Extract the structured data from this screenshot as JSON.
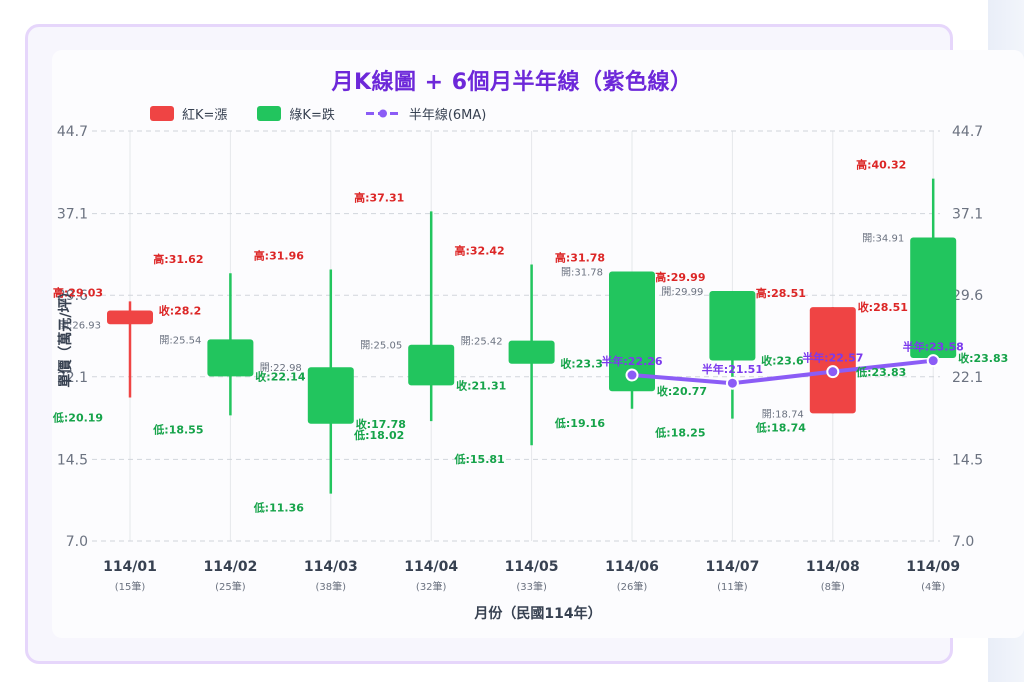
{
  "title": "月K線圖 + 6個月半年線（紫色線）",
  "legend": {
    "items": [
      {
        "label": "紅K=漲",
        "color": "#ef4444",
        "kind": "box"
      },
      {
        "label": "綠K=跌",
        "color": "#22c55e",
        "kind": "box"
      },
      {
        "label": "半年線(6MA)",
        "color": "#8b5cf6",
        "kind": "line-marker"
      }
    ]
  },
  "axes": {
    "ylabel": "單價（萬元/坪）",
    "xlabel": "月份（民國114年）",
    "yticks": [
      "44.7",
      "37.1",
      "29.6",
      "22.1",
      "14.5",
      "7.0"
    ]
  },
  "labels": {
    "high": "高:",
    "low": "低:",
    "open": "開:",
    "close": "收:",
    "ma": "半年:"
  },
  "colors": {
    "up": "#ef4444",
    "down": "#22c55e",
    "ma": "#8b5cf6",
    "grid": "#d1d5db",
    "title": "#6d28d9"
  },
  "chart_data": {
    "type": "candlestick",
    "title": "月K線圖 + 6個月半年線（紫色線）",
    "xlabel": "月份（民國114年）",
    "ylabel": "單價（萬元/坪）",
    "ylim": [
      7.0,
      44.7
    ],
    "yticks": [
      7.0,
      14.5,
      22.1,
      29.6,
      37.1,
      44.7
    ],
    "grid": true,
    "legend_position": "top-left",
    "categories": [
      "114/01",
      "114/02",
      "114/03",
      "114/04",
      "114/05",
      "114/06",
      "114/07",
      "114/08",
      "114/09"
    ],
    "counts": [
      "(15筆)",
      "(25筆)",
      "(38筆)",
      "(32筆)",
      "(33筆)",
      "(26筆)",
      "(11筆)",
      "(8筆)",
      "(4筆)"
    ],
    "series": [
      {
        "name": "開",
        "values": [
          26.93,
          25.54,
          22.98,
          25.05,
          25.42,
          31.78,
          29.99,
          18.74,
          34.91
        ]
      },
      {
        "name": "高",
        "values": [
          29.03,
          31.62,
          31.96,
          37.31,
          32.42,
          31.78,
          29.99,
          28.51,
          40.32
        ]
      },
      {
        "name": "低",
        "values": [
          20.19,
          18.55,
          11.36,
          18.02,
          15.81,
          19.16,
          18.25,
          18.74,
          23.83
        ]
      },
      {
        "name": "收",
        "values": [
          28.2,
          22.14,
          17.78,
          21.31,
          23.3,
          20.77,
          23.6,
          28.51,
          23.83
        ]
      },
      {
        "name": "半年線(6MA)",
        "values": [
          null,
          null,
          null,
          null,
          null,
          22.26,
          21.51,
          22.57,
          23.58
        ]
      }
    ],
    "direction": [
      "up",
      "down",
      "down",
      "down",
      "down",
      "down",
      "down",
      "up",
      "down"
    ]
  },
  "display": {
    "open": [
      "26.93",
      "25.54",
      "22.98",
      "25.05",
      "25.42",
      "31.78",
      "29.99",
      "18.74",
      "34.91"
    ],
    "high": [
      "29.03",
      "31.62",
      "31.96",
      "37.31",
      "32.42",
      "31.78",
      "29.99",
      "28.51",
      "40.32"
    ],
    "low": [
      "20.19",
      "18.55",
      "11.36",
      "18.02",
      "15.81",
      "19.16",
      "18.25",
      "18.74",
      "23.83"
    ],
    "close": [
      "28.2",
      "22.14",
      "17.78",
      "21.31",
      "23.3",
      "20.77",
      "23.6",
      "28.51",
      "23.83"
    ],
    "ma": [
      "",
      "",
      "",
      "",
      "",
      "22.26",
      "21.51",
      "22.57",
      "23.58"
    ]
  }
}
